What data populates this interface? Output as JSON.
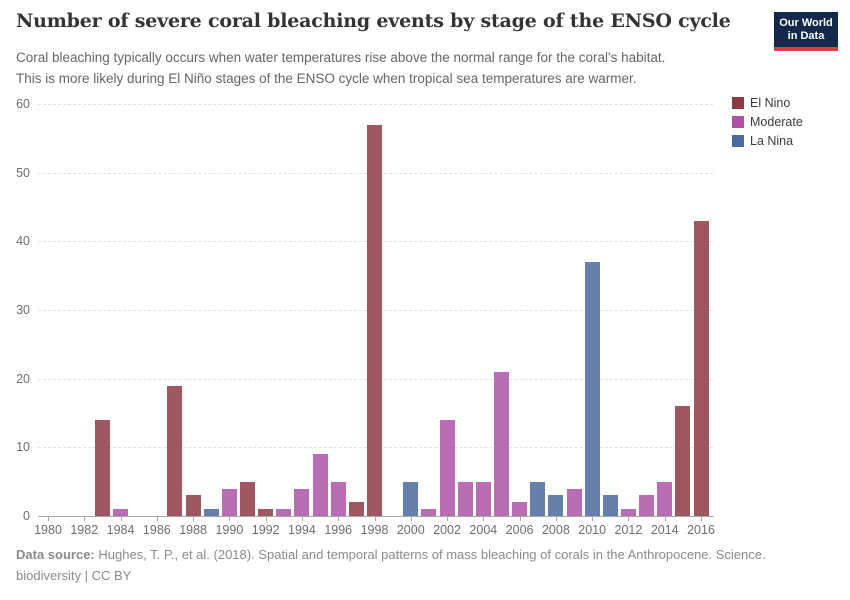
{
  "header": {
    "title": "Number of severe coral bleaching events by stage of the ENSO cycle",
    "logo": {
      "line1": "Our World",
      "line2": "in Data"
    }
  },
  "subtitle": {
    "line1": "Coral bleaching typically occurs when water temperatures rise above the normal range for the coral's habitat.",
    "line2": "This is more likely during El Niño stages of the ENSO cycle when tropical sea temperatures are warmer."
  },
  "legend": {
    "items": [
      {
        "label": "El Nino",
        "color": "#8e3a45"
      },
      {
        "label": "Moderate",
        "color": "#ad53a5"
      },
      {
        "label": "La Nina",
        "color": "#4c6a9c"
      }
    ]
  },
  "footer": {
    "source_label": "Data source:",
    "source_text": " Hughes, T. P., et al. (2018). Spatial and temporal patterns of mass bleaching of corals in the Anthropocene. Science.",
    "line2": "biodiversity | CC BY"
  },
  "chart_data": {
    "type": "bar",
    "title": "Number of severe coral bleaching events by stage of the ENSO cycle",
    "xlabel": "",
    "ylabel": "",
    "ylim": [
      0,
      60
    ],
    "y_ticks": [
      0,
      10,
      20,
      30,
      40,
      50,
      60
    ],
    "x_ticks": [
      1980,
      1982,
      1984,
      1986,
      1988,
      1990,
      1992,
      1994,
      1996,
      1998,
      2000,
      2002,
      2004,
      2006,
      2008,
      2010,
      2012,
      2014,
      2016
    ],
    "grid": "horizontal-dashed",
    "legend_position": "right",
    "points": [
      {
        "year": 1980,
        "value": 0,
        "stage": null
      },
      {
        "year": 1981,
        "value": 0,
        "stage": null
      },
      {
        "year": 1982,
        "value": 0,
        "stage": null
      },
      {
        "year": 1983,
        "value": 14,
        "stage": "El Nino"
      },
      {
        "year": 1984,
        "value": 1,
        "stage": "Moderate"
      },
      {
        "year": 1985,
        "value": 0,
        "stage": null
      },
      {
        "year": 1986,
        "value": 0,
        "stage": null
      },
      {
        "year": 1987,
        "value": 19,
        "stage": "El Nino"
      },
      {
        "year": 1988,
        "value": 3,
        "stage": "El Nino"
      },
      {
        "year": 1989,
        "value": 1,
        "stage": "La Nina"
      },
      {
        "year": 1990,
        "value": 4,
        "stage": "Moderate"
      },
      {
        "year": 1991,
        "value": 5,
        "stage": "El Nino"
      },
      {
        "year": 1992,
        "value": 1,
        "stage": "El Nino"
      },
      {
        "year": 1993,
        "value": 1,
        "stage": "Moderate"
      },
      {
        "year": 1994,
        "value": 4,
        "stage": "Moderate"
      },
      {
        "year": 1995,
        "value": 9,
        "stage": "Moderate"
      },
      {
        "year": 1996,
        "value": 5,
        "stage": "Moderate"
      },
      {
        "year": 1997,
        "value": 2,
        "stage": "El Nino"
      },
      {
        "year": 1998,
        "value": 57,
        "stage": "El Nino"
      },
      {
        "year": 1999,
        "value": 0,
        "stage": null
      },
      {
        "year": 2000,
        "value": 5,
        "stage": "La Nina"
      },
      {
        "year": 2001,
        "value": 1,
        "stage": "Moderate"
      },
      {
        "year": 2002,
        "value": 14,
        "stage": "Moderate"
      },
      {
        "year": 2003,
        "value": 5,
        "stage": "Moderate"
      },
      {
        "year": 2004,
        "value": 5,
        "stage": "Moderate"
      },
      {
        "year": 2005,
        "value": 21,
        "stage": "Moderate"
      },
      {
        "year": 2006,
        "value": 2,
        "stage": "Moderate"
      },
      {
        "year": 2007,
        "value": 5,
        "stage": "La Nina"
      },
      {
        "year": 2008,
        "value": 3,
        "stage": "La Nina"
      },
      {
        "year": 2009,
        "value": 4,
        "stage": "Moderate"
      },
      {
        "year": 2010,
        "value": 37,
        "stage": "La Nina"
      },
      {
        "year": 2011,
        "value": 3,
        "stage": "La Nina"
      },
      {
        "year": 2012,
        "value": 1,
        "stage": "Moderate"
      },
      {
        "year": 2013,
        "value": 3,
        "stage": "Moderate"
      },
      {
        "year": 2014,
        "value": 5,
        "stage": "Moderate"
      },
      {
        "year": 2015,
        "value": 16,
        "stage": "El Nino"
      },
      {
        "year": 2016,
        "value": 43,
        "stage": "El Nino"
      }
    ]
  }
}
